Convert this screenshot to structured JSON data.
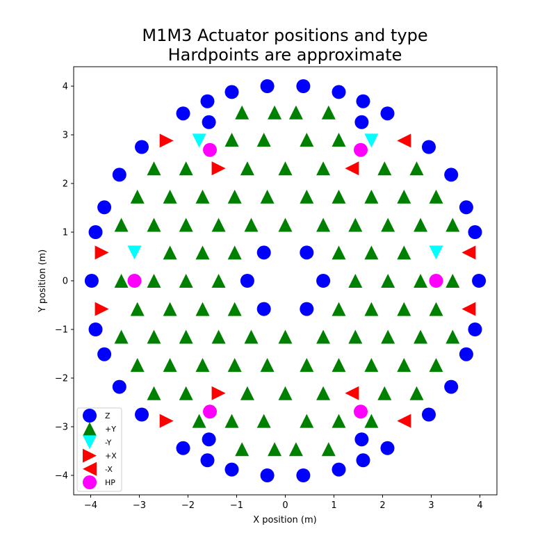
{
  "chart_data": {
    "type": "scatter",
    "title": [
      "M1M3 Actuator positions and type",
      "Hardpoints are approximate"
    ],
    "xlabel": "X position (m)",
    "ylabel": "Y position (m)",
    "xlim": [
      -4.35,
      4.35
    ],
    "ylim": [
      -4.4,
      4.4
    ],
    "xticks": [
      -4,
      -3,
      -2,
      -1,
      0,
      1,
      2,
      3,
      4
    ],
    "yticks": [
      -4,
      -3,
      -2,
      -1,
      0,
      1,
      2,
      3,
      4
    ],
    "xtick_labels": [
      "−4",
      "−3",
      "−2",
      "−1",
      "0",
      "1",
      "2",
      "3",
      "4"
    ],
    "ytick_labels": [
      "−4",
      "−3",
      "−2",
      "−1",
      "0",
      "1",
      "2",
      "3",
      "4"
    ],
    "grid": false,
    "legend_position": "lower-left",
    "series": [
      {
        "name": "Z",
        "marker": "circle",
        "color": "#0000ff",
        "points": [
          [
            -0.37,
            4.0
          ],
          [
            0.37,
            4.0
          ],
          [
            -1.1,
            3.88
          ],
          [
            1.1,
            3.88
          ],
          [
            -1.6,
            3.69
          ],
          [
            1.6,
            3.69
          ],
          [
            -2.1,
            3.44
          ],
          [
            2.1,
            3.44
          ],
          [
            -1.57,
            3.26
          ],
          [
            1.57,
            3.26
          ],
          [
            -2.95,
            2.75
          ],
          [
            2.95,
            2.75
          ],
          [
            -3.41,
            2.18
          ],
          [
            3.41,
            2.18
          ],
          [
            -3.72,
            1.51
          ],
          [
            3.72,
            1.51
          ],
          [
            -3.9,
            1.0
          ],
          [
            3.9,
            1.0
          ],
          [
            -3.98,
            0.0
          ],
          [
            3.98,
            0.0
          ],
          [
            -0.44,
            0.58
          ],
          [
            0.44,
            0.58
          ],
          [
            -0.78,
            0.0
          ],
          [
            0.78,
            0.0
          ],
          [
            -0.44,
            -0.58
          ],
          [
            0.44,
            -0.58
          ],
          [
            -3.9,
            -1.0
          ],
          [
            3.9,
            -1.0
          ],
          [
            -3.72,
            -1.51
          ],
          [
            3.72,
            -1.51
          ],
          [
            -3.41,
            -2.18
          ],
          [
            3.41,
            -2.18
          ],
          [
            -2.95,
            -2.75
          ],
          [
            2.95,
            -2.75
          ],
          [
            -1.57,
            -3.26
          ],
          [
            1.57,
            -3.26
          ],
          [
            -2.1,
            -3.44
          ],
          [
            2.1,
            -3.44
          ],
          [
            -1.6,
            -3.69
          ],
          [
            1.6,
            -3.69
          ],
          [
            -1.1,
            -3.88
          ],
          [
            1.1,
            -3.88
          ],
          [
            -0.37,
            -4.0
          ],
          [
            0.37,
            -4.0
          ]
        ]
      },
      {
        "name": "+Y",
        "marker": "triangle-up",
        "color": "#008000",
        "points": [
          [
            -0.89,
            3.46
          ],
          [
            -0.22,
            3.46
          ],
          [
            0.22,
            3.46
          ],
          [
            0.89,
            3.46
          ],
          [
            -1.1,
            2.9
          ],
          [
            -0.44,
            2.9
          ],
          [
            0.44,
            2.9
          ],
          [
            1.1,
            2.9
          ],
          [
            -2.7,
            2.31
          ],
          [
            -2.04,
            2.31
          ],
          [
            -0.78,
            2.31
          ],
          [
            0.0,
            2.31
          ],
          [
            0.78,
            2.31
          ],
          [
            2.04,
            2.31
          ],
          [
            2.7,
            2.31
          ],
          [
            -3.04,
            1.73
          ],
          [
            -2.37,
            1.73
          ],
          [
            -1.7,
            1.73
          ],
          [
            -1.04,
            1.73
          ],
          [
            -0.37,
            1.73
          ],
          [
            0.44,
            1.73
          ],
          [
            1.1,
            1.73
          ],
          [
            1.77,
            1.73
          ],
          [
            2.44,
            1.73
          ],
          [
            3.1,
            1.73
          ],
          [
            -3.37,
            1.15
          ],
          [
            -2.7,
            1.15
          ],
          [
            -2.04,
            1.15
          ],
          [
            -1.37,
            1.15
          ],
          [
            -0.7,
            1.15
          ],
          [
            0.0,
            1.15
          ],
          [
            0.78,
            1.15
          ],
          [
            1.44,
            1.15
          ],
          [
            2.11,
            1.15
          ],
          [
            2.78,
            1.15
          ],
          [
            3.44,
            1.15
          ],
          [
            -2.37,
            0.58
          ],
          [
            -1.7,
            0.58
          ],
          [
            -1.04,
            0.58
          ],
          [
            1.1,
            0.58
          ],
          [
            1.77,
            0.58
          ],
          [
            2.44,
            0.58
          ],
          [
            -3.37,
            0.0
          ],
          [
            -2.7,
            0.0
          ],
          [
            -2.04,
            0.0
          ],
          [
            -1.37,
            0.0
          ],
          [
            1.44,
            0.0
          ],
          [
            2.11,
            0.0
          ],
          [
            2.78,
            0.0
          ],
          [
            3.44,
            0.0
          ],
          [
            -3.04,
            -0.58
          ],
          [
            -2.37,
            -0.58
          ],
          [
            -1.7,
            -0.58
          ],
          [
            -1.04,
            -0.58
          ],
          [
            1.1,
            -0.58
          ],
          [
            1.77,
            -0.58
          ],
          [
            2.44,
            -0.58
          ],
          [
            3.1,
            -0.58
          ],
          [
            -3.37,
            -1.15
          ],
          [
            -2.7,
            -1.15
          ],
          [
            -2.04,
            -1.15
          ],
          [
            -1.37,
            -1.15
          ],
          [
            -0.7,
            -1.15
          ],
          [
            0.0,
            -1.15
          ],
          [
            0.78,
            -1.15
          ],
          [
            1.44,
            -1.15
          ],
          [
            2.11,
            -1.15
          ],
          [
            2.78,
            -1.15
          ],
          [
            3.44,
            -1.15
          ],
          [
            -3.04,
            -1.73
          ],
          [
            -2.37,
            -1.73
          ],
          [
            -1.7,
            -1.73
          ],
          [
            -1.04,
            -1.73
          ],
          [
            -0.37,
            -1.73
          ],
          [
            0.44,
            -1.73
          ],
          [
            1.1,
            -1.73
          ],
          [
            1.77,
            -1.73
          ],
          [
            2.44,
            -1.73
          ],
          [
            3.1,
            -1.73
          ],
          [
            -2.7,
            -2.31
          ],
          [
            -2.04,
            -2.31
          ],
          [
            -0.78,
            -2.31
          ],
          [
            0.0,
            -2.31
          ],
          [
            0.78,
            -2.31
          ],
          [
            2.04,
            -2.31
          ],
          [
            2.7,
            -2.31
          ],
          [
            -1.77,
            -2.88
          ],
          [
            -1.1,
            -2.88
          ],
          [
            -0.44,
            -2.88
          ],
          [
            0.44,
            -2.88
          ],
          [
            1.1,
            -2.88
          ],
          [
            1.77,
            -2.88
          ],
          [
            -0.89,
            -3.46
          ],
          [
            -0.22,
            -3.46
          ],
          [
            0.22,
            -3.46
          ],
          [
            0.89,
            -3.46
          ]
        ]
      },
      {
        "name": "-Y",
        "marker": "triangle-down",
        "color": "#00ffff",
        "points": [
          [
            -1.77,
            2.88
          ],
          [
            1.77,
            2.88
          ],
          [
            -3.1,
            0.58
          ],
          [
            3.1,
            0.58
          ]
        ]
      },
      {
        "name": "+X",
        "marker": "triangle-right",
        "color": "#ff0000",
        "points": [
          [
            -2.44,
            2.88
          ],
          [
            -1.37,
            2.31
          ],
          [
            -3.77,
            0.58
          ],
          [
            -3.77,
            -0.58
          ],
          [
            -1.37,
            -2.31
          ],
          [
            -2.44,
            -2.88
          ]
        ]
      },
      {
        "name": "-X",
        "marker": "triangle-left",
        "color": "#ff0000",
        "points": [
          [
            2.44,
            2.88
          ],
          [
            1.37,
            2.31
          ],
          [
            3.77,
            0.58
          ],
          [
            3.77,
            -0.58
          ],
          [
            1.37,
            -2.31
          ],
          [
            2.44,
            -2.88
          ]
        ]
      },
      {
        "name": "HP",
        "marker": "circle",
        "color": "#ff00ff",
        "points": [
          [
            -1.55,
            2.69
          ],
          [
            1.55,
            2.69
          ],
          [
            -3.1,
            0.0
          ],
          [
            3.1,
            0.0
          ],
          [
            -1.55,
            -2.69
          ],
          [
            1.55,
            -2.69
          ]
        ]
      }
    ]
  }
}
